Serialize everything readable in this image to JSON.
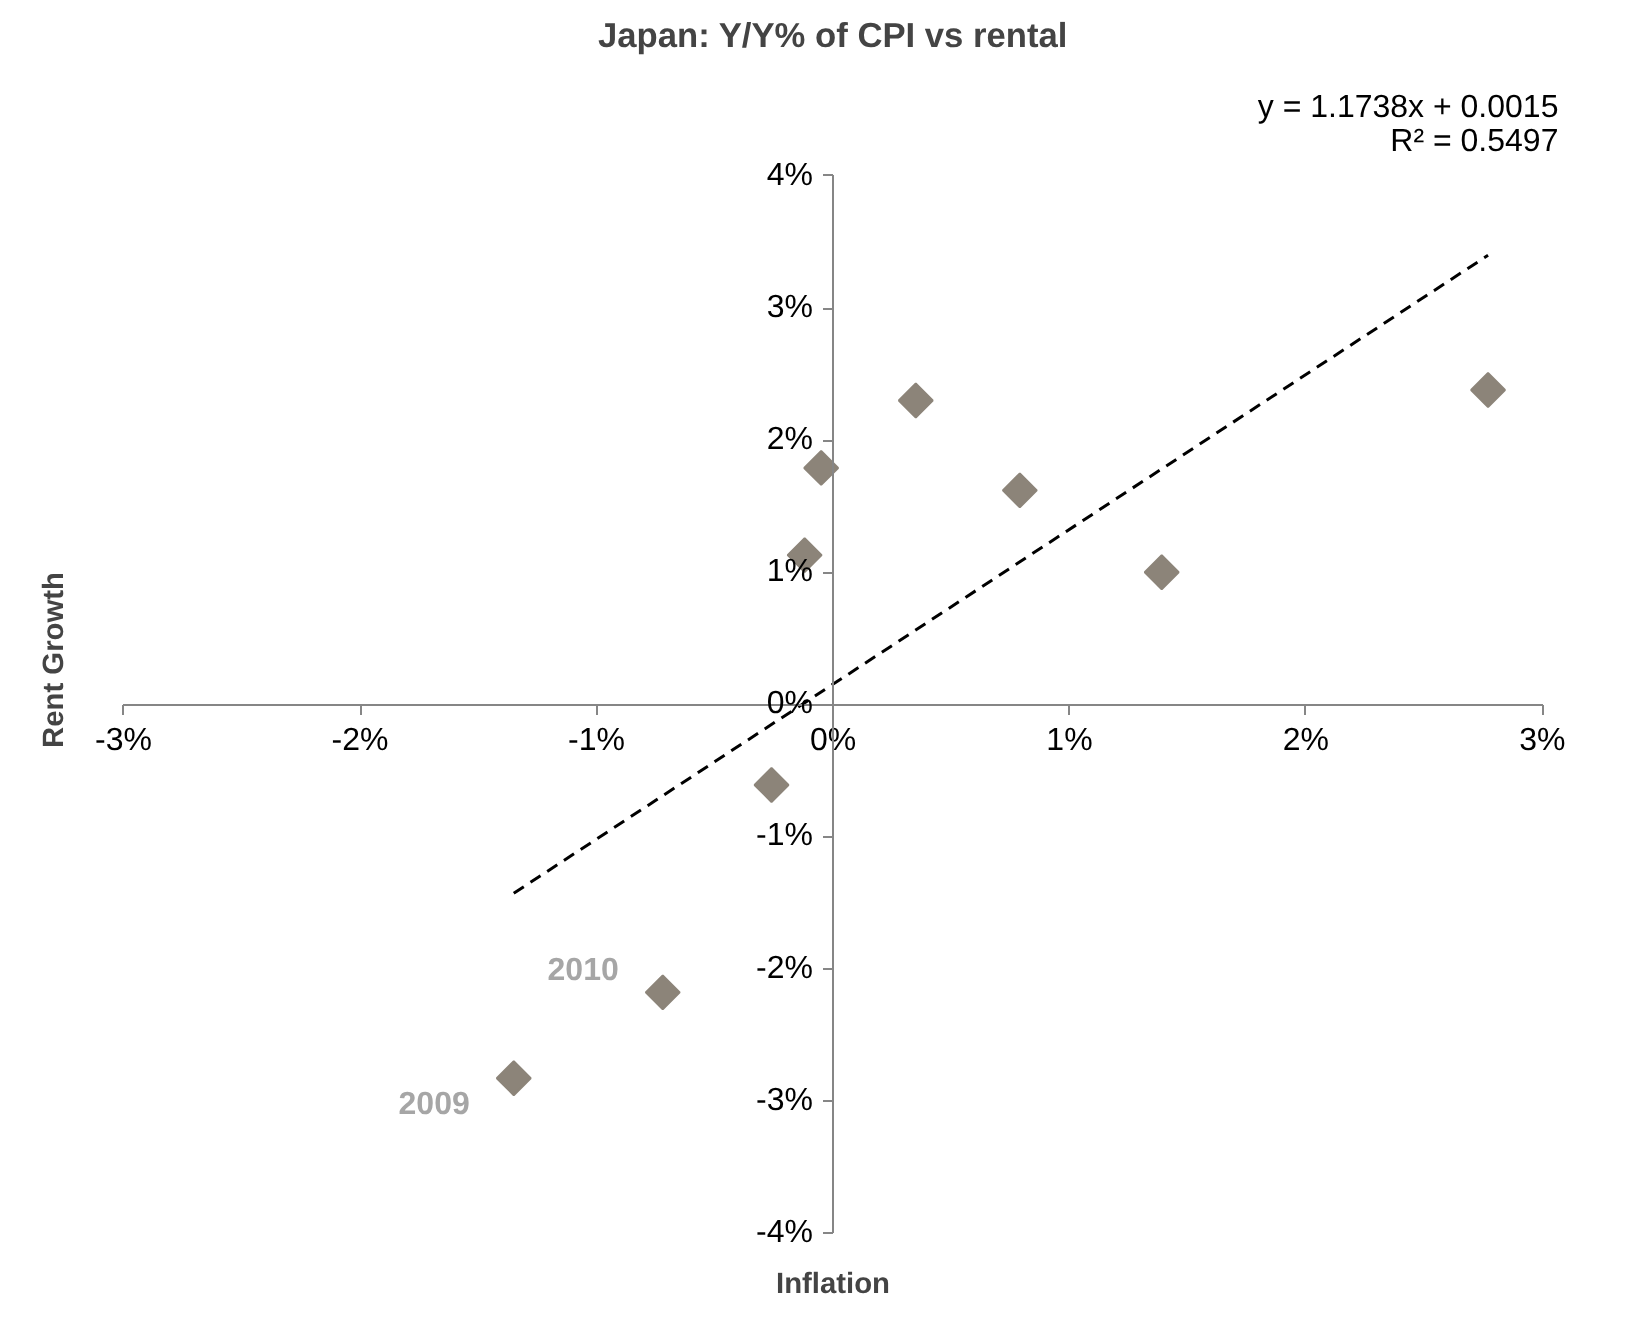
{
  "chart_data": {
    "type": "scatter",
    "title": "Japan: Y/Y% of CPI vs rental",
    "xlabel": "Inflation",
    "ylabel": "Rent Growth",
    "xlim": [
      -3,
      3
    ],
    "ylim": [
      -4,
      4
    ],
    "xticks": [
      {
        "value": -3,
        "label": "-3%"
      },
      {
        "value": -2,
        "label": "-2%"
      },
      {
        "value": -1,
        "label": "-1%"
      },
      {
        "value": 0,
        "label": "0%"
      },
      {
        "value": 1,
        "label": "1%"
      },
      {
        "value": 2,
        "label": "2%"
      },
      {
        "value": 3,
        "label": "3%"
      }
    ],
    "yticks": [
      {
        "value": -4,
        "label": "-4%"
      },
      {
        "value": -3,
        "label": "-3%"
      },
      {
        "value": -2,
        "label": "-2%"
      },
      {
        "value": -1,
        "label": "-1%"
      },
      {
        "value": 0,
        "label": "0%"
      },
      {
        "value": 1,
        "label": "1%"
      },
      {
        "value": 2,
        "label": "2%"
      },
      {
        "value": 3,
        "label": "3%"
      },
      {
        "value": 4,
        "label": "4%"
      }
    ],
    "grid": false,
    "series": [
      {
        "color": "#8c8479",
        "marker": "diamond",
        "x": [
          -1.35,
          -0.72,
          -0.26,
          -0.12,
          -0.05,
          0.35,
          0.79,
          1.39,
          2.77
        ],
        "values": [
          -2.83,
          -2.18,
          -0.61,
          1.13,
          1.79,
          2.3,
          1.62,
          1.0,
          2.38
        ]
      },
      {
        "type": "line",
        "color": "#000000",
        "line_style": "dashed",
        "x": [
          -1.35,
          2.77
        ],
        "values": [
          -1.43,
          3.4
        ]
      }
    ],
    "annotations": [
      "y = 1.1738x + 0.0015",
      "R² = 0.5497",
      {
        "text": "2009",
        "x": -1.35,
        "y": -2.83
      },
      {
        "text": "2010",
        "x": -0.72,
        "y": -2.18
      }
    ]
  }
}
